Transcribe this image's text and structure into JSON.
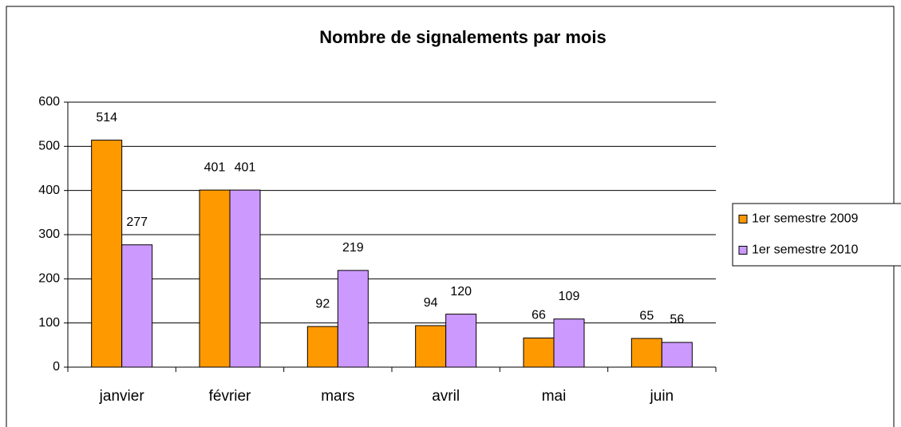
{
  "chart_data": {
    "type": "bar",
    "title": "Nombre de signalements par mois",
    "categories": [
      "janvier",
      "février",
      "mars",
      "avril",
      "mai",
      "juin"
    ],
    "series": [
      {
        "name": "1er semestre 2009",
        "color": "#FF9900",
        "values": [
          514,
          401,
          92,
          94,
          66,
          65
        ]
      },
      {
        "name": "1er semestre 2010",
        "color": "#CC99FF",
        "values": [
          277,
          401,
          219,
          120,
          109,
          56
        ]
      }
    ],
    "ylim": [
      0,
      600
    ],
    "yticks": [
      0,
      100,
      200,
      300,
      400,
      500,
      600
    ],
    "grid": true,
    "legend": "right"
  }
}
